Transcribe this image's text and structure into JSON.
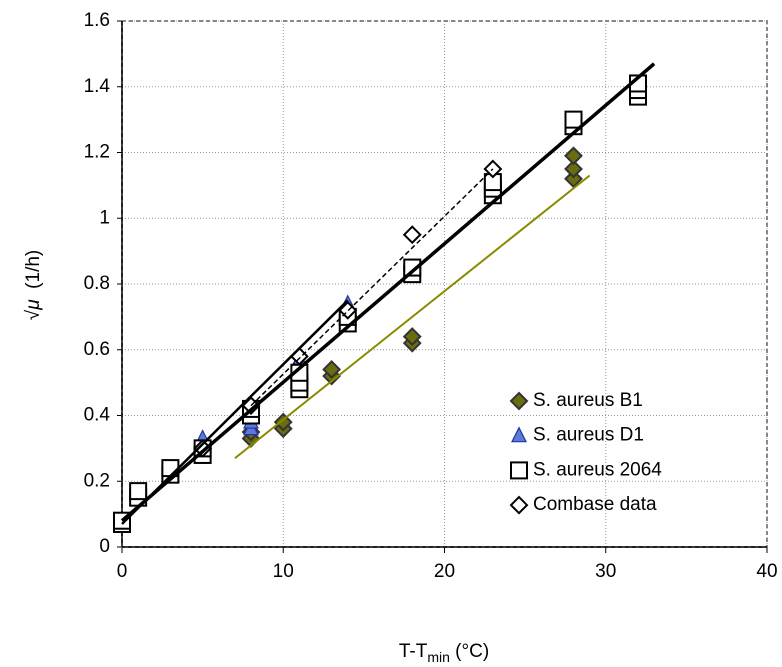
{
  "chart_data": {
    "type": "scatter",
    "x_label": [
      "T-T",
      "min",
      " (°C)"
    ],
    "y_label": [
      "√",
      "μ",
      "  (1/h)"
    ],
    "xlim": [
      0,
      40
    ],
    "xticks": [
      0,
      10,
      20,
      30,
      40
    ],
    "ylim": [
      0,
      1.6
    ],
    "yticks": [
      0,
      0.2,
      0.4,
      0.6,
      0.8,
      1,
      1.2,
      1.4,
      1.6
    ],
    "grid": true,
    "legend": "lower right",
    "series": [
      {
        "name": "S. aureus B1",
        "marker": "diamond",
        "color": "#6b6b10",
        "filled": true,
        "x": [
          8,
          8,
          10,
          10,
          13,
          13,
          18,
          18,
          28,
          28,
          28
        ],
        "values": [
          0.33,
          0.35,
          0.36,
          0.38,
          0.52,
          0.54,
          0.62,
          0.64,
          1.12,
          1.15,
          1.19
        ]
      },
      {
        "name": "S. aureus D1",
        "marker": "triangle",
        "color": "#5b7bd5",
        "filled": true,
        "x": [
          5,
          8,
          8,
          11,
          11,
          14,
          14
        ],
        "values": [
          0.33,
          0.36,
          0.38,
          0.55,
          0.57,
          0.72,
          0.74
        ]
      },
      {
        "name": "S. aureus 2064",
        "marker": "square",
        "color": "#000000",
        "filled": false,
        "x": [
          0,
          0,
          1,
          1,
          3,
          3,
          5,
          5,
          8,
          8,
          11,
          11,
          11,
          14,
          14,
          18,
          18,
          23,
          23,
          23,
          28,
          28,
          32,
          32,
          32
        ],
        "values": [
          0.07,
          0.08,
          0.15,
          0.17,
          0.22,
          0.24,
          0.28,
          0.3,
          0.4,
          0.42,
          0.48,
          0.5,
          0.53,
          0.68,
          0.7,
          0.83,
          0.85,
          1.07,
          1.09,
          1.11,
          1.28,
          1.3,
          1.37,
          1.39,
          1.41
        ]
      },
      {
        "name": "Combase data",
        "marker": "diamond",
        "color": "#000000",
        "filled": false,
        "x": [
          5,
          8,
          11,
          14,
          18,
          23
        ],
        "values": [
          0.3,
          0.43,
          0.58,
          0.72,
          0.95,
          1.15
        ]
      }
    ],
    "trend_lines": [
      {
        "color": "#000000",
        "width": 3.5,
        "dashed": false,
        "x": [
          0,
          33
        ],
        "values": [
          0.08,
          1.47
        ]
      },
      {
        "color": "#000000",
        "width": 2.5,
        "dashed": false,
        "x": [
          0,
          14
        ],
        "values": [
          0.07,
          0.75
        ]
      },
      {
        "color": "#000000",
        "width": 1.5,
        "dashed": true,
        "x": [
          8,
          23
        ],
        "values": [
          0.43,
          1.15
        ]
      },
      {
        "color": "#8a8a00",
        "width": 2,
        "dashed": false,
        "x": [
          7,
          29
        ],
        "values": [
          0.27,
          1.13
        ]
      }
    ]
  }
}
